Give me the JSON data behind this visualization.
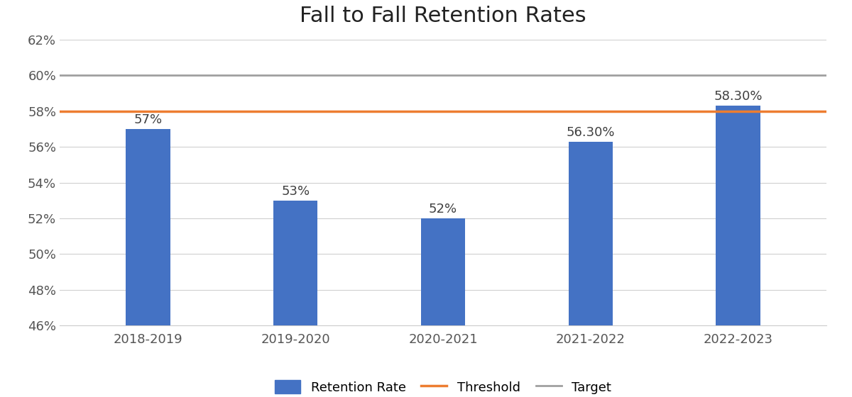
{
  "title": "Fall to Fall Retention Rates",
  "categories": [
    "2018-2019",
    "2019-2020",
    "2020-2021",
    "2021-2022",
    "2022-2023"
  ],
  "values": [
    57.0,
    53.0,
    52.0,
    56.3,
    58.3
  ],
  "bar_labels": [
    "57%",
    "53%",
    "52%",
    "56.30%",
    "58.30%"
  ],
  "bar_color": "#4472C4",
  "threshold_value": 58.0,
  "threshold_color": "#ED7D31",
  "threshold_label": "Threshold",
  "target_value": 60.0,
  "target_color": "#A0A0A0",
  "target_label": "Target",
  "retention_label": "Retention Rate",
  "ylim_min": 46,
  "ylim_max": 62,
  "yticks": [
    46,
    48,
    50,
    52,
    54,
    56,
    58,
    60,
    62
  ],
  "ytick_labels": [
    "46%",
    "48%",
    "50%",
    "52%",
    "54%",
    "56%",
    "58%",
    "60%",
    "62%"
  ],
  "background_color": "#ffffff",
  "grid_color": "#d0d0d0",
  "title_fontsize": 22,
  "tick_fontsize": 13,
  "bar_label_fontsize": 13,
  "legend_fontsize": 13,
  "bar_width": 0.3
}
